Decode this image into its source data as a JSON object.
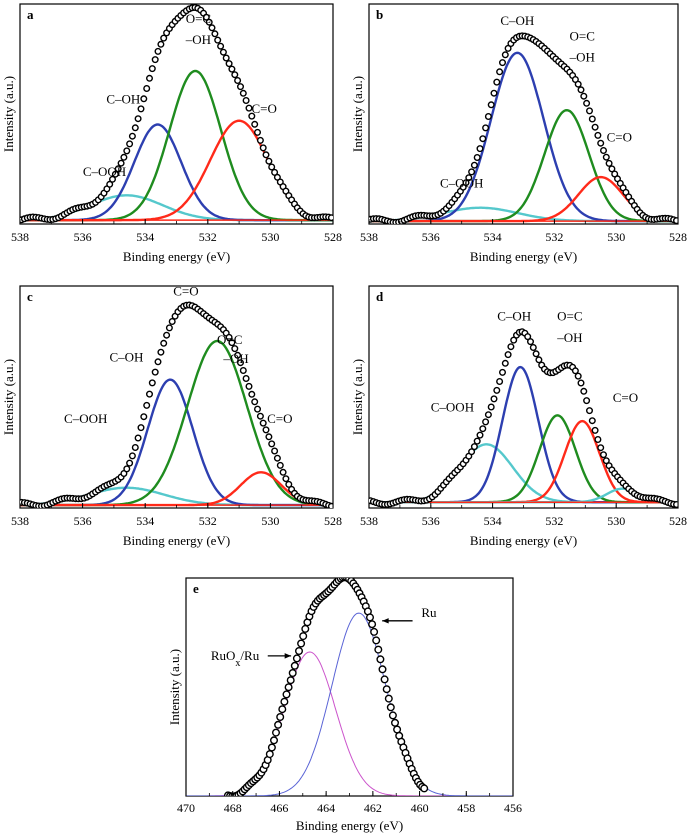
{
  "colors": {
    "red": "#ff2a1a",
    "green": "#1f8c1f",
    "blue": "#2d3fb0",
    "cyan": "#55c8cc",
    "ru_blue": "#5a64d6",
    "ru_magenta": "#cc55cc",
    "marker": "#000000"
  },
  "chart_data": [
    {
      "panel": "a",
      "type": "line",
      "xlabel": "Binding energy (eV)",
      "ylabel": "Intensity (a.u.)",
      "xlim": [
        538,
        528
      ],
      "ylim": [
        0,
        1.15
      ],
      "xticks": [
        538,
        536,
        534,
        532,
        530,
        528
      ],
      "components": [
        {
          "label": "C–OOH",
          "center": 534.6,
          "height": 0.13,
          "width": 1.15,
          "color": "cyan"
        },
        {
          "label": "C–OH",
          "center": 533.6,
          "height": 0.5,
          "width": 0.75,
          "color": "blue"
        },
        {
          "label": "O=C\n–OH",
          "center": 532.4,
          "height": 0.78,
          "width": 0.82,
          "color": "green"
        },
        {
          "label": "C=O",
          "center": 531.0,
          "height": 0.52,
          "width": 0.92,
          "color": "red"
        }
      ],
      "baseline": 0.02,
      "annotations": [
        {
          "text": "C–OOH",
          "x": 535.3,
          "y": 0.25
        },
        {
          "text": "C–OH",
          "x": 534.7,
          "y": 0.63
        },
        {
          "text": "O=C",
          "x": 532.3,
          "y": 1.05
        },
        {
          "text": "–OH",
          "x": 532.3,
          "y": 0.94
        },
        {
          "text": "C=O",
          "x": 530.2,
          "y": 0.58
        }
      ]
    },
    {
      "panel": "b",
      "type": "line",
      "xlabel": "Binding energy (eV)",
      "ylabel": "Intensity (a.u.)",
      "xlim": [
        538,
        528
      ],
      "ylim": [
        0,
        1.15
      ],
      "xticks": [
        538,
        536,
        534,
        532,
        530,
        528
      ],
      "components": [
        {
          "label": "C–OOH",
          "center": 534.4,
          "height": 0.07,
          "width": 1.2,
          "color": "cyan"
        },
        {
          "label": "C–OH",
          "center": 533.2,
          "height": 0.88,
          "width": 0.85,
          "color": "blue"
        },
        {
          "label": "O=C\n–OH",
          "center": 531.6,
          "height": 0.58,
          "width": 0.72,
          "color": "green"
        },
        {
          "label": "C=O",
          "center": 530.5,
          "height": 0.23,
          "width": 0.72,
          "color": "red"
        }
      ],
      "baseline": 0.015,
      "annotations": [
        {
          "text": "C–OOH",
          "x": 535.0,
          "y": 0.19
        },
        {
          "text": "C–OH",
          "x": 533.2,
          "y": 1.04
        },
        {
          "text": "O=C",
          "x": 531.1,
          "y": 0.96
        },
        {
          "text": "–OH",
          "x": 531.1,
          "y": 0.85
        },
        {
          "text": "C=O",
          "x": 529.9,
          "y": 0.43
        }
      ]
    },
    {
      "panel": "c",
      "type": "line",
      "xlabel": "Binding energy (eV)",
      "ylabel": "Intensity (a.u.)",
      "xlim": [
        538,
        528
      ],
      "ylim": [
        0,
        1.15
      ],
      "xticks": [
        538,
        536,
        534,
        532,
        530,
        528
      ],
      "components": [
        {
          "label": "C–OOH",
          "center": 534.6,
          "height": 0.09,
          "width": 1.2,
          "color": "cyan"
        },
        {
          "label": "C–OH",
          "center": 533.2,
          "height": 0.65,
          "width": 0.72,
          "color": "blue"
        },
        {
          "label": "O=C\n–OH",
          "center": 531.7,
          "height": 0.85,
          "width": 0.95,
          "color": "green"
        },
        {
          "label": "C=O",
          "center": 530.3,
          "height": 0.17,
          "width": 0.65,
          "color": "red"
        }
      ],
      "baseline": 0.015,
      "annotations": [
        {
          "text": "C=O",
          "x": 532.7,
          "y": 1.1
        },
        {
          "text": "C–OH",
          "x": 534.6,
          "y": 0.76
        },
        {
          "text": "C–OOH",
          "x": 535.9,
          "y": 0.44
        },
        {
          "text": "O=C",
          "x": 531.3,
          "y": 0.85
        },
        {
          "text": "–OH",
          "x": 531.1,
          "y": 0.75
        },
        {
          "text": "C=O",
          "x": 529.7,
          "y": 0.44
        }
      ]
    },
    {
      "panel": "d",
      "type": "line",
      "xlabel": "Binding energy (eV)",
      "ylabel": "Intensity (a.u.)",
      "xlim": [
        538,
        528
      ],
      "ylim": [
        0,
        1.15
      ],
      "xticks": [
        538,
        536,
        534,
        532,
        530,
        528
      ],
      "components": [
        {
          "label": "C–OOH",
          "center": 534.2,
          "height": 0.3,
          "width": 0.85,
          "color": "cyan"
        },
        {
          "label": "C–OH",
          "center": 533.1,
          "height": 0.7,
          "width": 0.58,
          "color": "blue"
        },
        {
          "label": "O=C\n–OH",
          "center": 531.9,
          "height": 0.45,
          "width": 0.58,
          "color": "green"
        },
        {
          "label": "C=O",
          "center": 531.1,
          "height": 0.42,
          "width": 0.56,
          "color": "red"
        },
        {
          "label": "",
          "center": 529.8,
          "height": 0.07,
          "width": 0.5,
          "color": "cyan"
        }
      ],
      "baseline": 0.03,
      "annotations": [
        {
          "text": "C–OOH",
          "x": 535.3,
          "y": 0.5
        },
        {
          "text": "C–OH",
          "x": 533.3,
          "y": 0.97
        },
        {
          "text": "O=C",
          "x": 531.5,
          "y": 0.97
        },
        {
          "text": "–OH",
          "x": 531.5,
          "y": 0.86
        },
        {
          "text": "C=O",
          "x": 529.7,
          "y": 0.55
        }
      ]
    },
    {
      "panel": "e",
      "type": "line",
      "xlabel": "Binding energy (eV)",
      "ylabel": "Intensity (a.u.)",
      "xlim": [
        470,
        456
      ],
      "ylim": [
        0,
        1.12
      ],
      "xticks": [
        470,
        468,
        466,
        464,
        462,
        460,
        458,
        456
      ],
      "components": [
        {
          "label": "RuOx/Ru",
          "center": 464.7,
          "height": 0.74,
          "width": 1.1,
          "color": "ru_magenta"
        },
        {
          "label": "Ru",
          "center": 462.6,
          "height": 0.94,
          "width": 1.15,
          "color": "ru_blue"
        }
      ],
      "baseline": 0.0,
      "data_xrange": [
        468.2,
        459.8
      ],
      "annotations": [
        {
          "text": "Ru",
          "x": 459.6,
          "y": 0.92
        },
        {
          "text": "RuOx/Ru",
          "x": 467.9,
          "y": 0.7
        }
      ]
    }
  ]
}
